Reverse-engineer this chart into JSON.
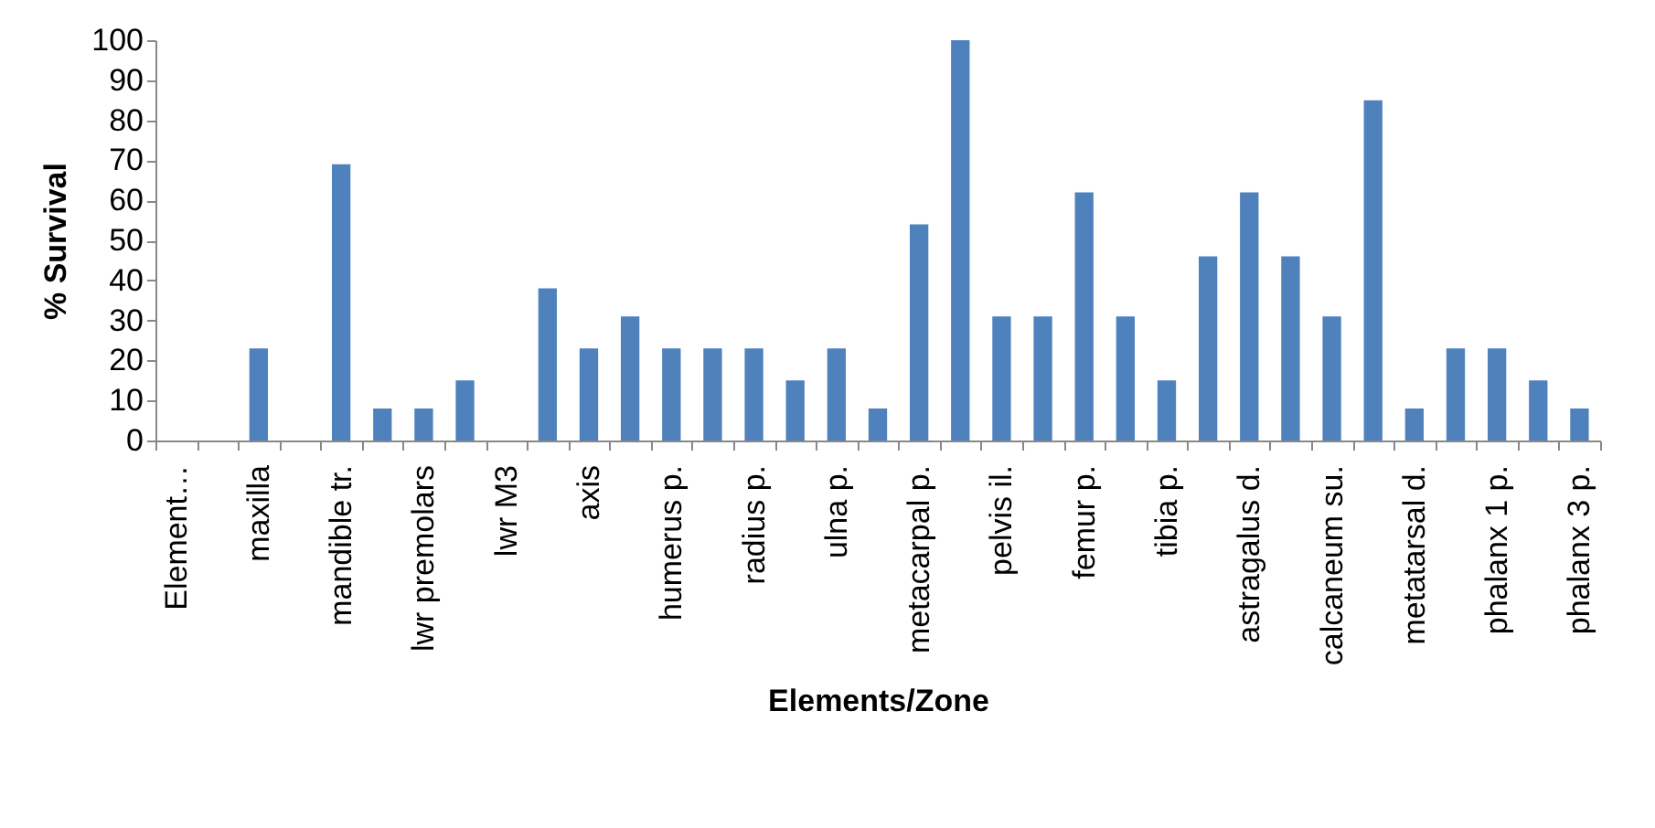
{
  "chart_data": {
    "type": "bar",
    "xlabel": "Elements/Zone",
    "ylabel": "% Survival",
    "categories": [
      "Element…",
      null,
      "maxilla",
      null,
      "mandible tr.",
      null,
      "lwr premolars",
      null,
      "lwr M3",
      null,
      "axis",
      null,
      "humerus p.",
      null,
      "radius p.",
      null,
      "ulna p.",
      null,
      "metacarpal p.",
      null,
      "pelvis il.",
      null,
      "femur p.",
      null,
      "tibia p.",
      null,
      "astragalus d.",
      null,
      "calcaneum su.",
      null,
      "metatarsal d.",
      null,
      "phalanx 1 p.",
      null,
      "phalanx 3 p."
    ],
    "values": [
      0,
      0,
      23,
      0,
      69,
      8,
      8,
      15,
      0,
      38,
      23,
      31,
      23,
      23,
      23,
      15,
      23,
      8,
      54,
      100,
      31,
      31,
      62,
      31,
      15,
      46,
      62,
      46,
      31,
      85,
      8,
      23,
      23,
      15,
      8
    ],
    "color": "#4f81bd",
    "ylim": [
      0,
      100
    ],
    "yticks": [
      0,
      10,
      20,
      30,
      40,
      50,
      60,
      70,
      80,
      90,
      100
    ],
    "grid": false,
    "legend": false
  }
}
